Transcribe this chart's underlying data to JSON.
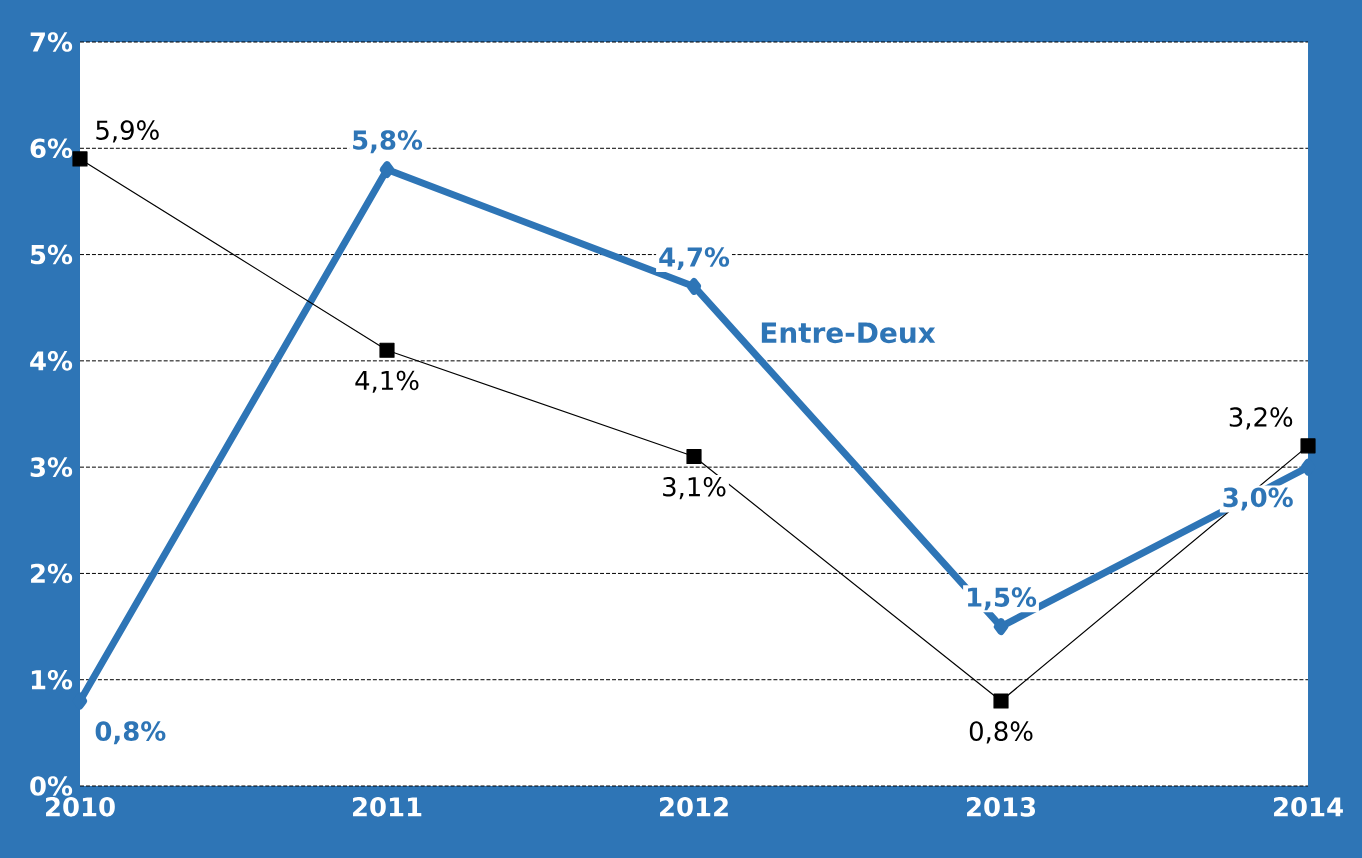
{
  "chart_data": {
    "type": "line",
    "x": [
      2010,
      2011,
      2012,
      2013,
      2014
    ],
    "series": [
      {
        "name": "Entre-Deux",
        "color": "#2e75b6",
        "values": [
          0.8,
          5.8,
          4.7,
          1.5,
          3.0
        ],
        "value_labels": [
          "0,8%",
          "5,8%",
          "4,7%",
          "1,5%",
          "3,0%"
        ],
        "marker": "diamond"
      },
      {
        "color": "#000000",
        "values": [
          5.9,
          4.1,
          3.1,
          0.8,
          3.2
        ],
        "value_labels": [
          "5,9%",
          "4,1%",
          "3,1%",
          "0,8%",
          "3,2%"
        ],
        "marker": "square"
      }
    ],
    "xlim": [
      2010,
      2014
    ],
    "xticks": [
      2010,
      2011,
      2012,
      2013,
      2014
    ],
    "ylim": [
      0,
      7
    ],
    "yticks": [
      {
        "value": 0,
        "label": "0%"
      },
      {
        "value": 1,
        "label": "1%"
      },
      {
        "value": 2,
        "label": "2%"
      },
      {
        "value": 3,
        "label": "3%"
      },
      {
        "value": 4,
        "label": "4%"
      },
      {
        "value": 5,
        "label": "5%"
      },
      {
        "value": 6,
        "label": "6%"
      },
      {
        "value": 7,
        "label": "7%"
      }
    ],
    "grid": "y"
  }
}
